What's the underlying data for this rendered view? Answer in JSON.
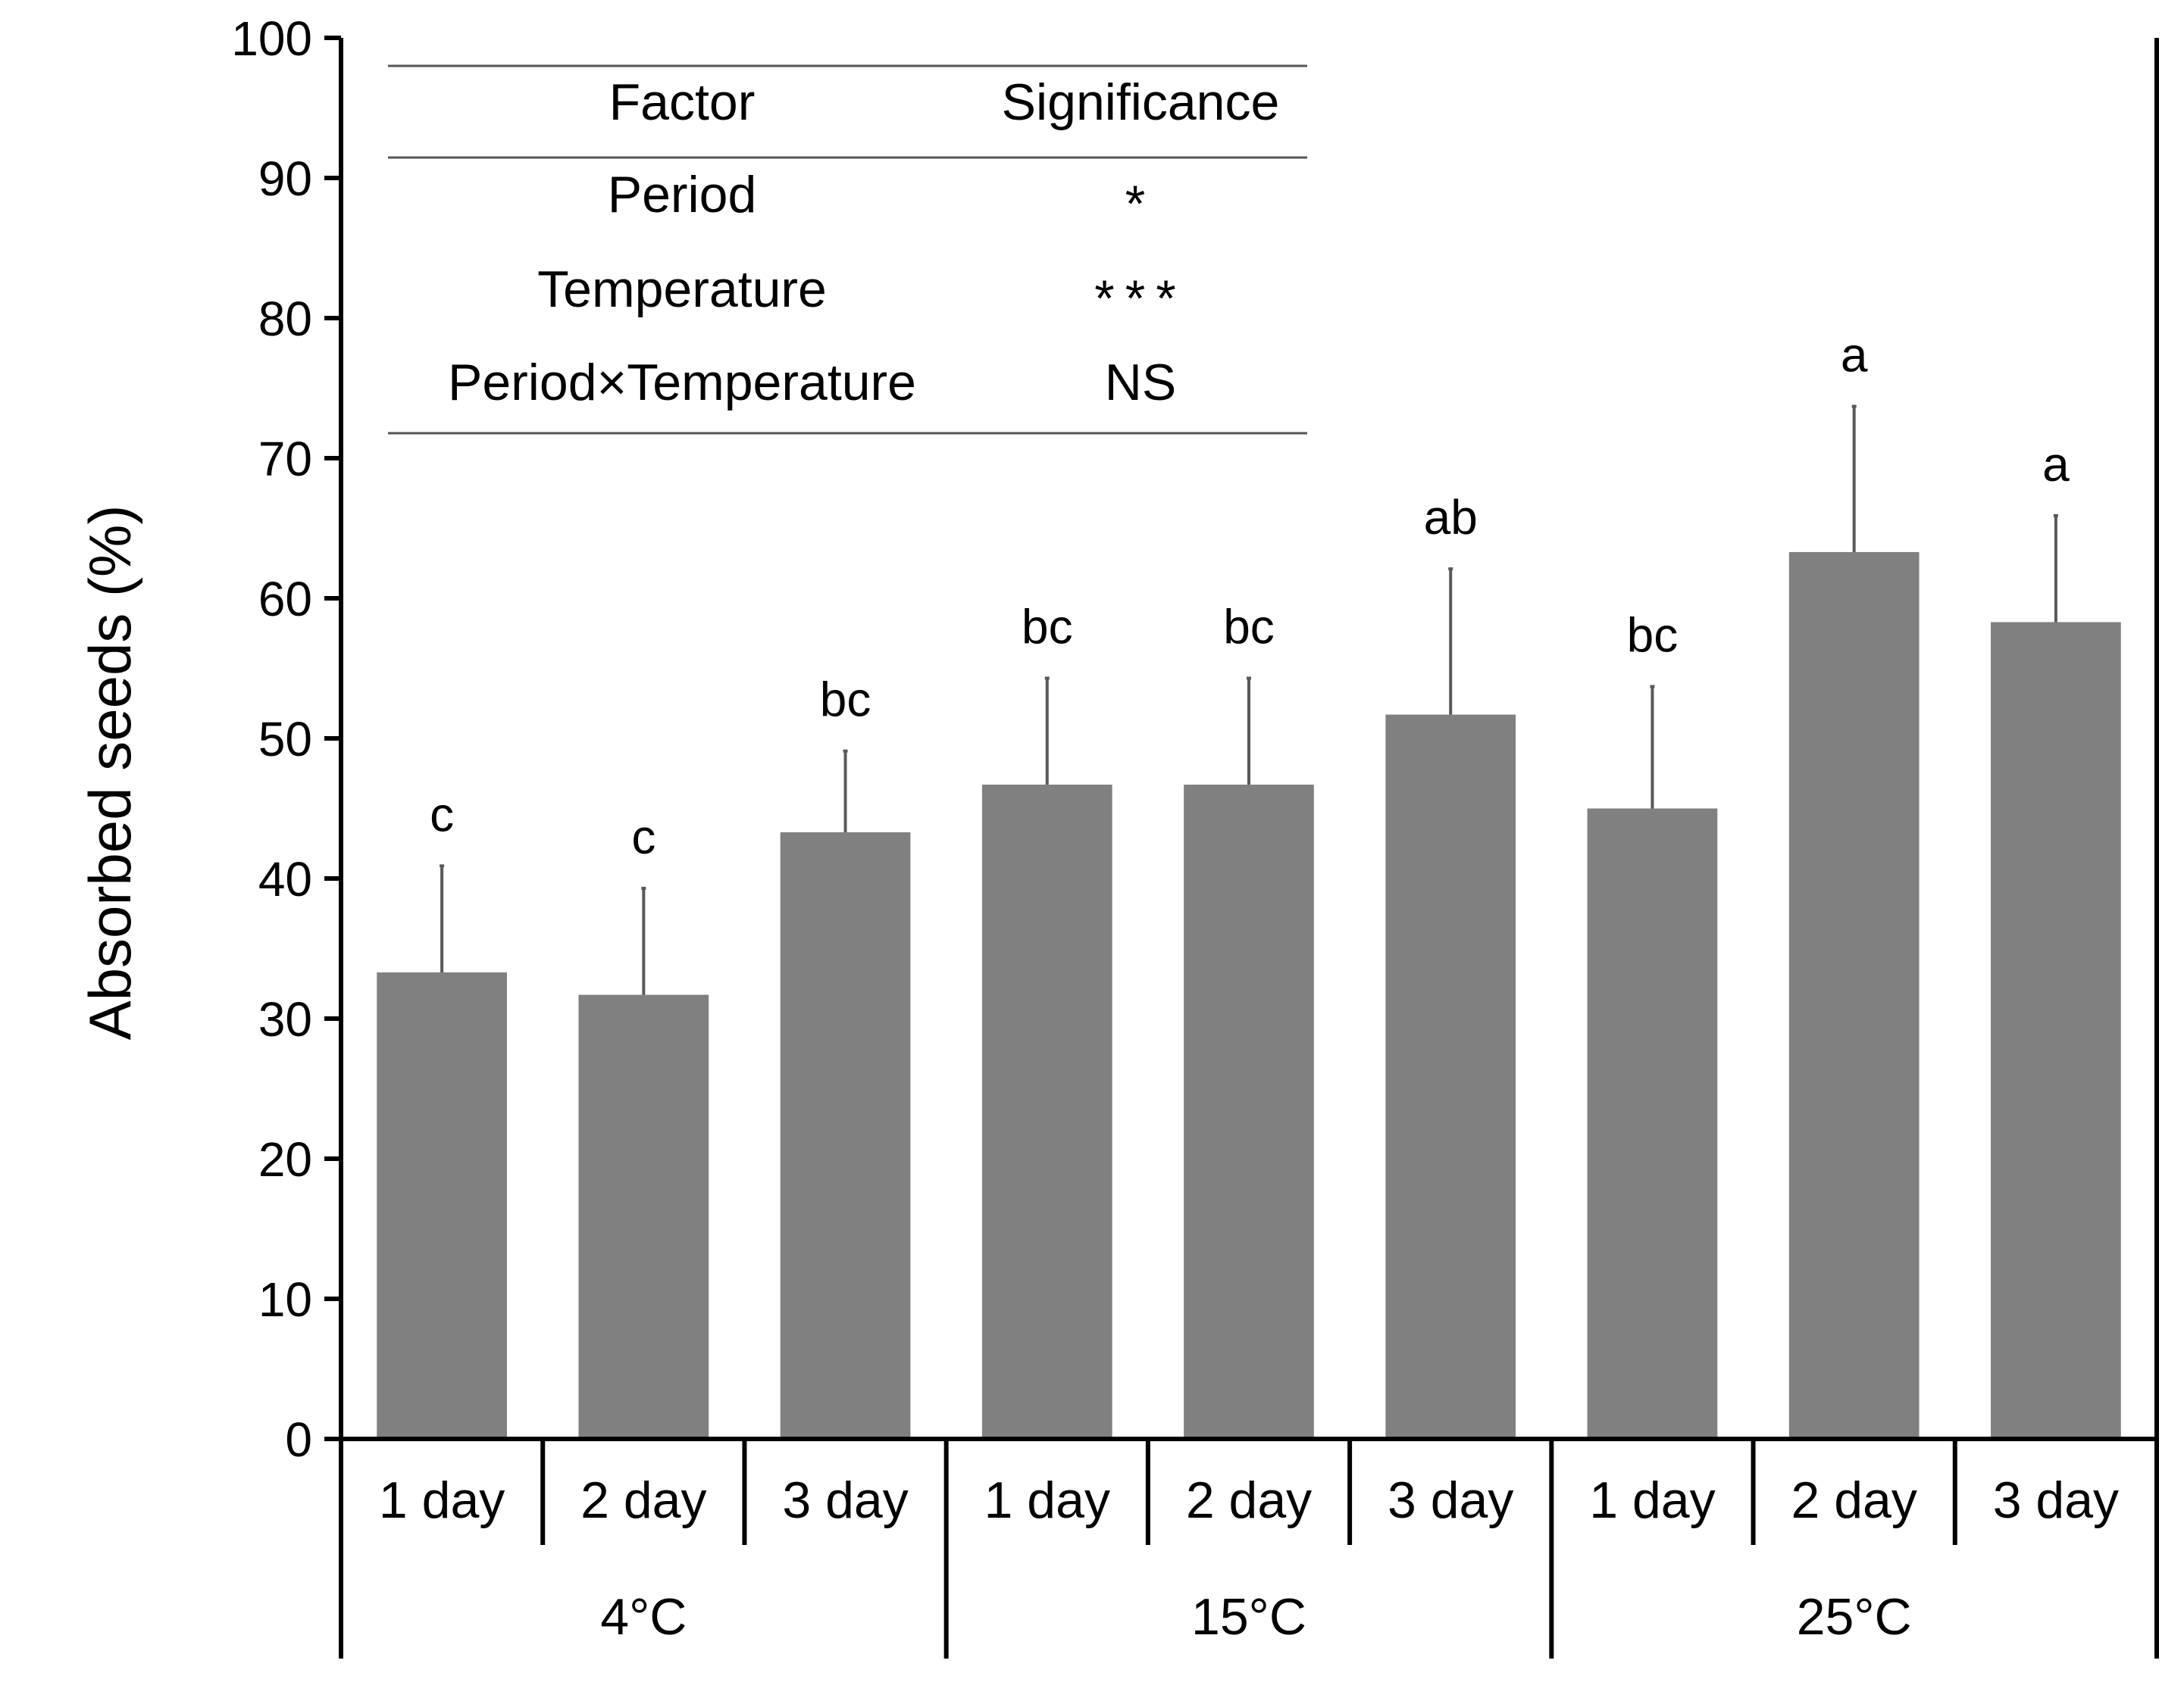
{
  "chart_data": {
    "type": "bar",
    "title": "",
    "xlabel": "",
    "ylabel": "Absorbed seeds (%)",
    "ylim": [
      0,
      100
    ],
    "yticks": [
      0,
      10,
      20,
      30,
      40,
      50,
      60,
      70,
      80,
      90,
      100
    ],
    "grid": false,
    "bar_color": "#808080",
    "error_color": "#595959",
    "groups": [
      {
        "label": "4°C",
        "categories": [
          "1 day",
          "2 day",
          "3 day"
        ]
      },
      {
        "label": "15°C",
        "categories": [
          "1 day",
          "2 day",
          "3 day"
        ]
      },
      {
        "label": "25°C",
        "categories": [
          "1 day",
          "2 day",
          "3 day"
        ]
      }
    ],
    "categories": [
      "1 day",
      "2 day",
      "3 day",
      "1 day",
      "2 day",
      "3 day",
      "1 day",
      "2 day",
      "3 day"
    ],
    "values": [
      33.3,
      31.7,
      43.3,
      46.7,
      46.7,
      51.7,
      45.0,
      63.3,
      58.3
    ],
    "errors": [
      7.6,
      7.6,
      5.8,
      7.6,
      7.6,
      10.4,
      8.7,
      10.4,
      7.6
    ],
    "letters": [
      "c",
      "c",
      "bc",
      "bc",
      "bc",
      "ab",
      "bc",
      "a",
      "a"
    ],
    "table": {
      "headers": [
        "Factor",
        "Significance"
      ],
      "rows": [
        [
          "Period",
          "*"
        ],
        [
          "Temperature",
          "***"
        ],
        [
          "Period×Temperature",
          "NS"
        ]
      ]
    }
  }
}
